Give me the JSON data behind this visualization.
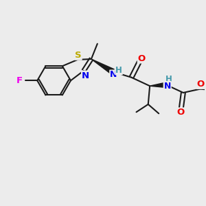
{
  "bg_color": "#ececec",
  "bond_color": "#1a1a1a",
  "bond_width": 1.5,
  "figsize": [
    3.0,
    3.0
  ],
  "dpi": 100,
  "atom_colors": {
    "F": "#ee00ee",
    "S": "#bbaa00",
    "N": "#0000ee",
    "O": "#ee0000",
    "H": "#4499aa",
    "C": "#1a1a1a"
  }
}
